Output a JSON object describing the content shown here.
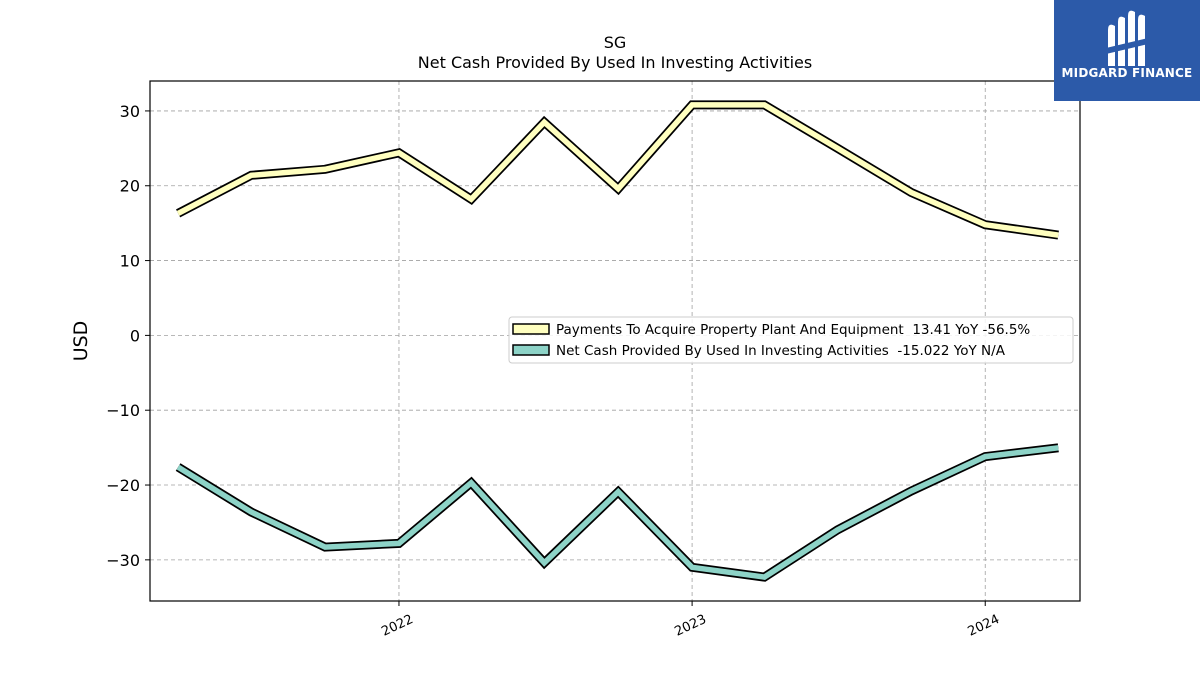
{
  "chart_data": {
    "type": "line",
    "title": "SG",
    "subtitle": "Net Cash Provided By Used In Investing Activities",
    "ylabel": "USD",
    "ylim": [
      -35.5,
      34
    ],
    "yticks": [
      30,
      20,
      10,
      0,
      -10,
      -20,
      -30
    ],
    "ytick_labels": [
      "30",
      "20",
      "10",
      "0",
      "−10",
      "−20",
      "−30"
    ],
    "xlim": [
      "2021-02-25",
      "2024-04-28"
    ],
    "xticks": [
      "2022-01-01",
      "2023-01-01",
      "2024-01-01"
    ],
    "xtick_labels": [
      "2022",
      "2023",
      "2024"
    ],
    "grid": true,
    "legend_position": "center-right",
    "x": [
      "2021-04-01",
      "2021-07-01",
      "2021-10-01",
      "2022-01-01",
      "2022-04-01",
      "2022-07-01",
      "2022-10-01",
      "2023-01-01",
      "2023-04-01",
      "2023-07-01",
      "2023-10-01",
      "2024-01-01",
      "2024-04-01"
    ],
    "series": [
      {
        "name": "Payments To Acquire Property Plant And Equipment",
        "legend_label": "Payments To Acquire Property Plant And Equipment  13.41 YoY -56.5%",
        "color": "#ffffbf",
        "values": [
          16.3,
          21.4,
          22.2,
          24.4,
          18.2,
          28.5,
          19.6,
          30.8,
          30.8,
          25.0,
          19.1,
          14.8,
          13.41
        ]
      },
      {
        "name": "Net Cash Provided By Used In Investing Activities",
        "legend_label": "Net Cash Provided By Used In Investing Activities  -15.022 YoY N/A",
        "color": "#8dd3c7",
        "values": [
          -17.6,
          -23.6,
          -28.3,
          -27.8,
          -19.7,
          -30.4,
          -20.9,
          -31.0,
          -32.3,
          -26.0,
          -20.8,
          -16.2,
          -15.022
        ]
      }
    ]
  },
  "logo": {
    "text": "MIDGARD FINANCE",
    "bg_color": "#2c5aa9"
  }
}
